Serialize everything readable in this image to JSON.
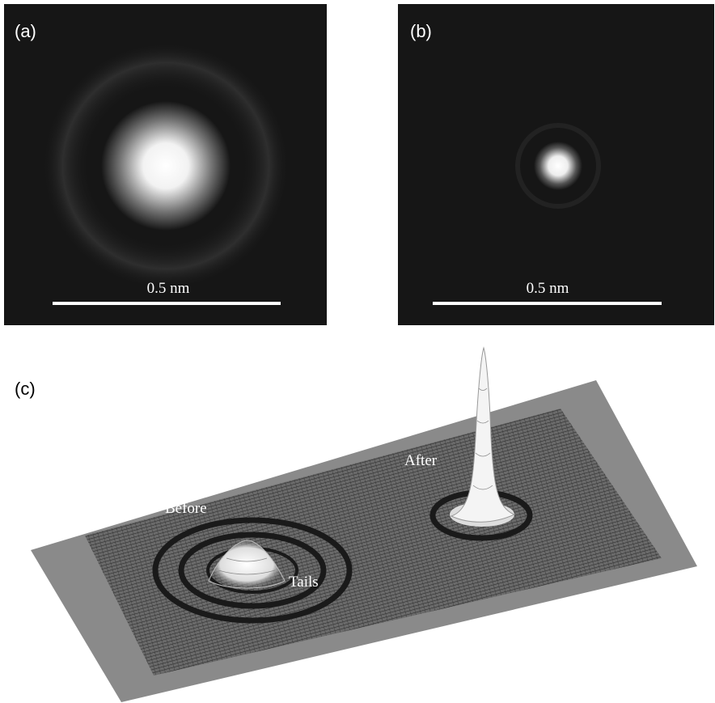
{
  "panels": [
    {
      "label": "(a)",
      "scale_label": "0.5 nm"
    },
    {
      "label": "(b)",
      "scale_label": "0.5 nm"
    },
    {
      "label": "(c)",
      "annotations": [
        "Before",
        "After",
        "Tails"
      ]
    }
  ]
}
